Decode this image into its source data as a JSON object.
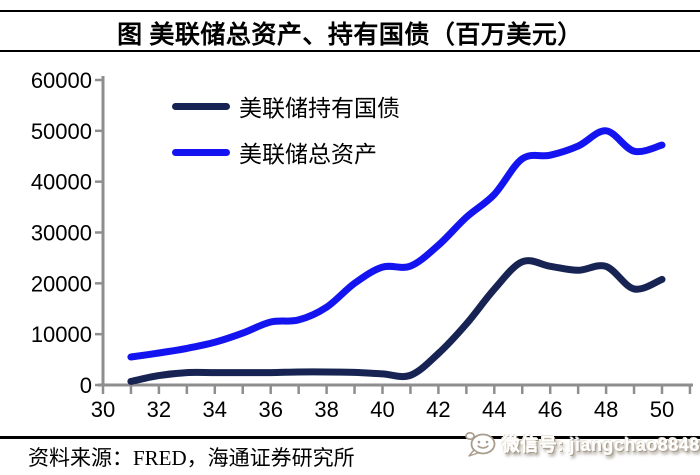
{
  "title": "图  美联储总资产、持有国债（百万美元）",
  "source_note": "资料来源：FRED，海通证券研究所",
  "watermark": {
    "icon": "wechat-chat-bubble-icon",
    "label": "微信号: jiangchao8848"
  },
  "colors": {
    "assets_blue": "#1414f0",
    "treasuries_navy": "#172453",
    "axis_gray": "#8e8e8e",
    "rule_black": "#000000",
    "tick_text": "#000000",
    "watermark_fill": "#ffffff",
    "watermark_shadow": "#a89d8d"
  },
  "chart_data": {
    "type": "line",
    "title": "图 美联储总资产、持有国债（百万美元）",
    "unit": "百万美元",
    "x": [
      31,
      32,
      33,
      34,
      35,
      36,
      37,
      38,
      39,
      40,
      41,
      42,
      43,
      44,
      45,
      46,
      47,
      48,
      49,
      50
    ],
    "x_tick_labels": [
      30,
      32,
      34,
      36,
      38,
      40,
      42,
      44,
      46,
      48,
      50
    ],
    "x_minor_tick_start": 30,
    "x_minor_tick_end": 51,
    "series": [
      {
        "name": "美联储持有国债",
        "color": "#172453",
        "values": [
          700,
          1855,
          2437,
          2430,
          2431,
          2430,
          2564,
          2564,
          2484,
          2184,
          1900,
          6189,
          12000,
          18846,
          24262,
          23350,
          22559,
          23333,
          18900,
          20778
        ]
      },
      {
        "name": "美联储总资产",
        "color": "#1414f0",
        "values": [
          5500,
          6300,
          7200,
          8400,
          10200,
          12400,
          12800,
          15300,
          20000,
          23200,
          23400,
          27500,
          33000,
          37500,
          44500,
          45200,
          47000,
          50000,
          46000,
          47200
        ]
      }
    ],
    "ylim": [
      0,
      60000
    ],
    "y_ticks": [
      0,
      10000,
      20000,
      30000,
      40000,
      50000,
      60000
    ],
    "xlim": [
      30,
      51.1
    ],
    "xlabel": "",
    "ylabel": "",
    "grid": false,
    "legend_position": "top-left"
  }
}
